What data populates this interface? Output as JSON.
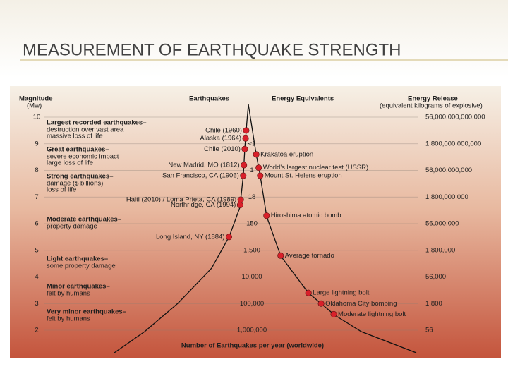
{
  "title": "MEASUREMENT OF EARTHQUAKE STRENGTH",
  "figure": {
    "headers": {
      "magnitude": "Magnitude",
      "magnitude_unit": "(Mw)",
      "earthquakes": "Earthquakes",
      "energy_equivalents": "Energy Equivalents",
      "energy_release": "Energy Release",
      "energy_release_unit": "(equivalent kilograms of explosive)"
    },
    "magnitudes": [
      10,
      9,
      8,
      7,
      6,
      5,
      4,
      3,
      2
    ],
    "energy_release": [
      "56,000,000,000,000",
      "1,800,000,000,000",
      "56,000,000,000",
      "1,800,000,000",
      "56,000,000",
      "1,800,000",
      "56,000",
      "1,800",
      "56"
    ],
    "annual_counts": [
      "<1",
      "1",
      "18",
      "150",
      "1,500",
      "10,000",
      "100,000",
      "1,000,000"
    ],
    "classes": [
      {
        "name": "Largest recorded earthquakes–",
        "lines": [
          "destruction over vast area",
          "massive loss of life"
        ]
      },
      {
        "name": "Great earthquakes–",
        "lines": [
          "severe economic impact",
          "large loss of life"
        ]
      },
      {
        "name": "Strong earthquakes–",
        "lines": [
          "damage ($ billions)",
          "loss of life"
        ]
      },
      {
        "name": "Moderate earthquakes–",
        "lines": [
          "property damage"
        ]
      },
      {
        "name": "Light earthquakes–",
        "lines": [
          "some property damage"
        ]
      },
      {
        "name": "Minor earthquakes–",
        "lines": [
          "felt by humans"
        ]
      },
      {
        "name": "Very minor earthquakes–",
        "lines": [
          "felt by humans"
        ]
      }
    ],
    "earthquakes": [
      {
        "label": "Chile (1960)",
        "magnitude": 9.5
      },
      {
        "label": "Alaska (1964)",
        "magnitude": 9.2
      },
      {
        "label": "Chile (2010)",
        "magnitude": 8.8
      },
      {
        "label": "New Madrid, MO (1812)",
        "magnitude": 8.2
      },
      {
        "label": "San Francisco, CA (1906)",
        "magnitude": 7.8
      },
      {
        "label": "Haiti (2010) / Loma Prieta, CA (1989)",
        "magnitude": 6.9
      },
      {
        "label": "Northridge, CA (1994)",
        "magnitude": 6.7
      },
      {
        "label": "Long Island, NY (1884)",
        "magnitude": 5.5
      }
    ],
    "energy_equivalents": [
      {
        "label": "Krakatoa eruption",
        "magnitude": 8.6
      },
      {
        "label": "World's largest nuclear test (USSR)",
        "magnitude": 8.1
      },
      {
        "label": "Mount St. Helens eruption",
        "magnitude": 7.8
      },
      {
        "label": "Hiroshima atomic bomb",
        "magnitude": 6.3
      },
      {
        "label": "Average tornado",
        "magnitude": 4.8
      },
      {
        "label": "Large lightning bolt",
        "magnitude": 3.4
      },
      {
        "label": "Oklahoma City bombing",
        "magnitude": 3.0
      },
      {
        "label": "Moderate lightning bolt",
        "magnitude": 2.6
      }
    ],
    "x_label": "Number of Earthquakes per year (worldwide)"
  }
}
